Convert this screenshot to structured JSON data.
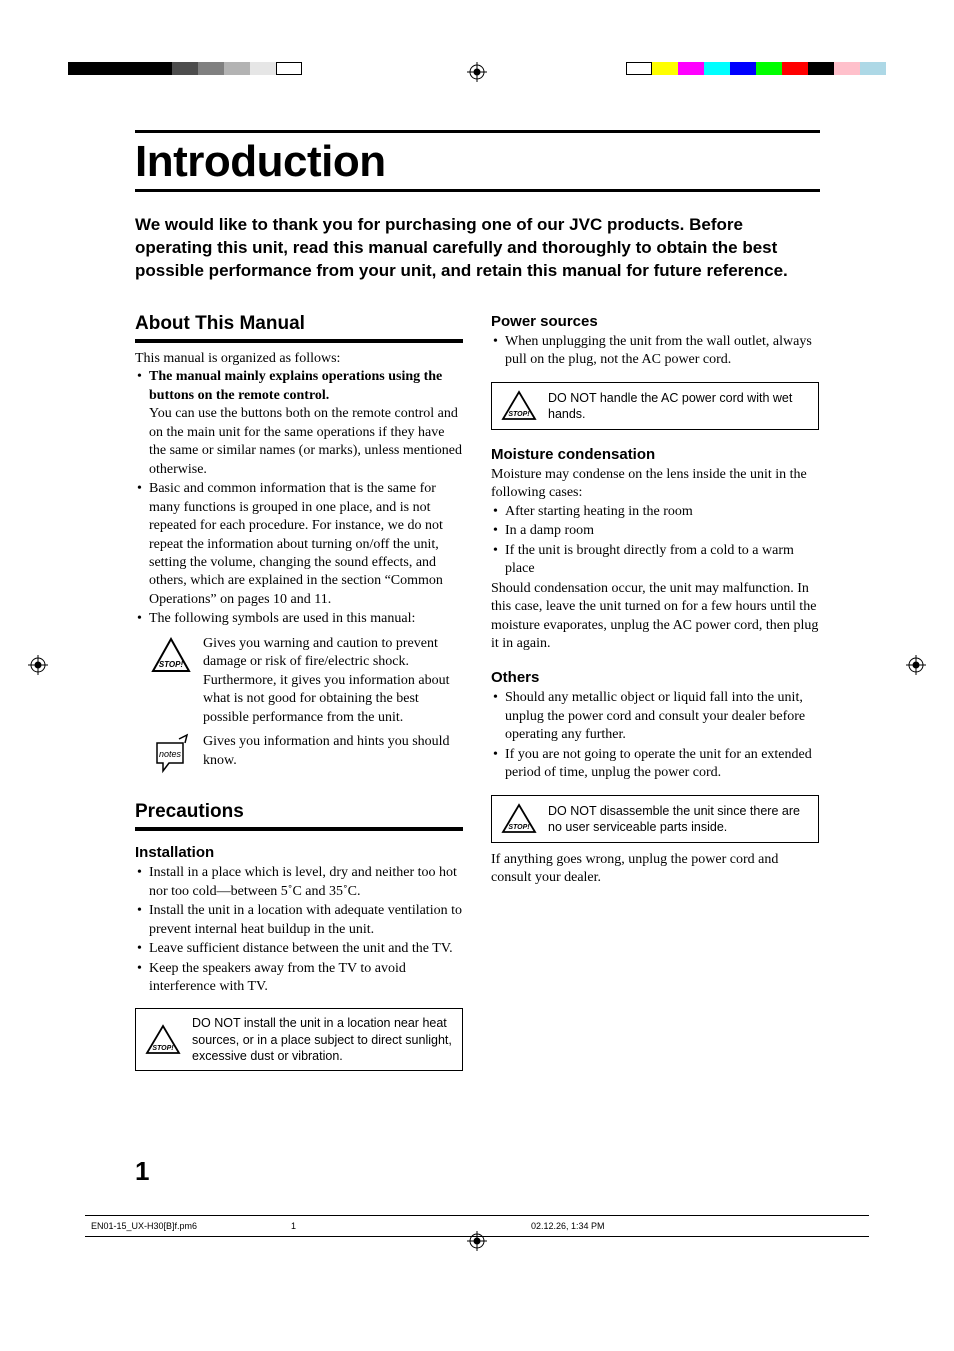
{
  "registration": {
    "left_colors": [
      "#000000",
      "#000000",
      "#000000",
      "#000000",
      "#4d4d4d",
      "#808080",
      "#b3b3b3",
      "#e6e6e6",
      "#ffffff"
    ],
    "right_colors": [
      "#ffffff",
      "#ffff00",
      "#ff00ff",
      "#00ffff",
      "#0000ff",
      "#00ff00",
      "#ff0000",
      "#000000",
      "#ffc0cb",
      "#add8e6"
    ]
  },
  "title": "Introduction",
  "intro_text": "We would like to thank you for purchasing one of our JVC products. Before operating this unit, read this manual carefully and thoroughly to obtain the best possible performance from your unit, and retain this manual for future reference.",
  "left_col": {
    "h2_about": "About This Manual",
    "p_organized": "This manual is organized as follows:",
    "bul1_bold": "The manual mainly explains operations using the buttons on the remote control.",
    "bul1_rest": "You can use the buttons both on the remote control and on the main unit for the same operations if they have the same or similar names (or marks), unless mentioned otherwise.",
    "bul2": "Basic and common information that is the same for many functions is grouped in one place, and is not repeated for each procedure. For instance, we do not repeat the information about turning on/off the unit, setting the volume, changing the sound effects, and others, which are explained in the section “Common Operations” on pages 10 and 11.",
    "bul3": "The following symbols are used in this manual:",
    "sym_stop_text": "Gives you warning and caution to prevent damage or risk of fire/electric shock.\nFurthermore, it gives you information about what is not good for obtaining the best possible performance from the unit.",
    "sym_notes_text": "Gives you information and hints you should know.",
    "h2_precautions": "Precautions",
    "h3_install": "Installation",
    "inst1": "Install in a place which is level, dry and neither too hot nor too cold—between 5˚C and 35˚C.",
    "inst2": "Install the unit in a location with adequate ventilation to prevent internal heat buildup in the unit.",
    "inst3": "Leave sufficient distance between the unit and the TV.",
    "inst4": "Keep the speakers away from the TV to avoid interference with TV.",
    "callout_install": "DO NOT install the unit in a location near heat sources, or in a place subject to direct sunlight, excessive dust or vibration."
  },
  "right_col": {
    "h3_power": "Power sources",
    "pwr1": "When unplugging the unit from the wall outlet, always pull on the plug, not the AC power cord.",
    "callout_power": "DO NOT handle the AC power cord with wet hands.",
    "h3_moisture": "Moisture condensation",
    "moist_intro": "Moisture may condense on the lens inside the unit in the following cases:",
    "moist1": "After starting heating in the room",
    "moist2": "In a damp room",
    "moist3": "If the unit is brought directly from a cold to a warm place",
    "moist_outro": "Should condensation occur, the unit may malfunction. In this case, leave the unit turned on for a few hours until the moisture evaporates, unplug the AC power cord, then plug it in again.",
    "h3_others": "Others",
    "oth1": "Should any metallic object or liquid fall into the unit, unplug the power cord and consult your dealer before operating any further.",
    "oth2": "If you are not going to operate the unit for an extended period of time, unplug the power cord.",
    "callout_others": "DO NOT disassemble the unit since there are no user serviceable parts inside.",
    "others_outro": "If anything goes wrong, unplug the power cord and consult your dealer."
  },
  "page_number": "1",
  "footer": {
    "file": "EN01-15_UX-H30[B]f.pm6",
    "page": "1",
    "date": "02.12.26, 1:34 PM"
  },
  "icons": {
    "stop_label": "STOP!",
    "notes_label": "notes"
  },
  "colors": {
    "text": "#000000",
    "background": "#ffffff"
  }
}
